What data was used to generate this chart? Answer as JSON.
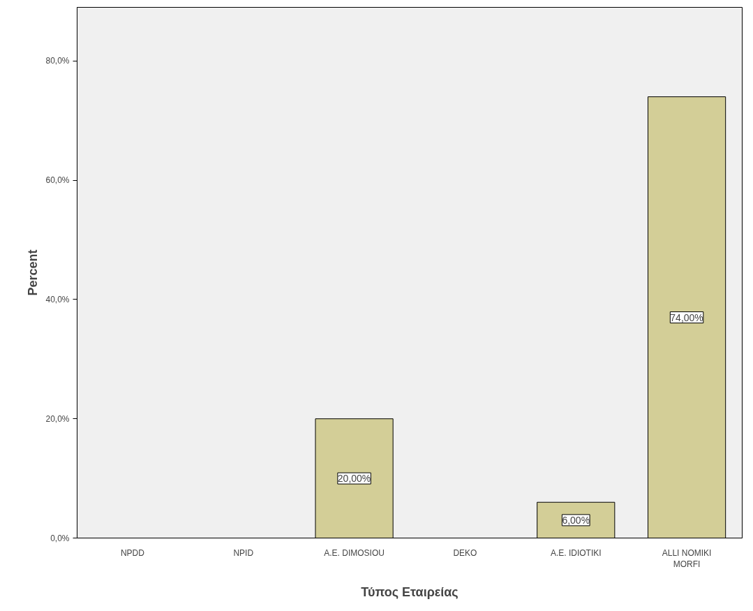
{
  "chart_data": {
    "type": "bar",
    "xlabel": "Τύπος Εταιρείας",
    "ylabel": "Percent",
    "categories": [
      "NPDD",
      "NPID",
      "A.E. DIMOSIOU",
      "DEKO",
      "A.E. IDIOTIKI",
      "ALLI NOMIKI MORFI"
    ],
    "values": [
      0,
      0,
      20,
      0,
      6,
      74
    ],
    "value_labels": [
      null,
      null,
      "20,00%",
      null,
      "6,00%",
      "74,00%"
    ],
    "color": "#d3ce97",
    "ylim": [
      0,
      89
    ],
    "yticks": [
      {
        "value": 0,
        "label": "0,0%"
      },
      {
        "value": 20,
        "label": "20,0%"
      },
      {
        "value": 40,
        "label": "40,0%"
      },
      {
        "value": 60,
        "label": "60,0%"
      },
      {
        "value": 80,
        "label": "80,0%"
      }
    ],
    "grid": false
  }
}
